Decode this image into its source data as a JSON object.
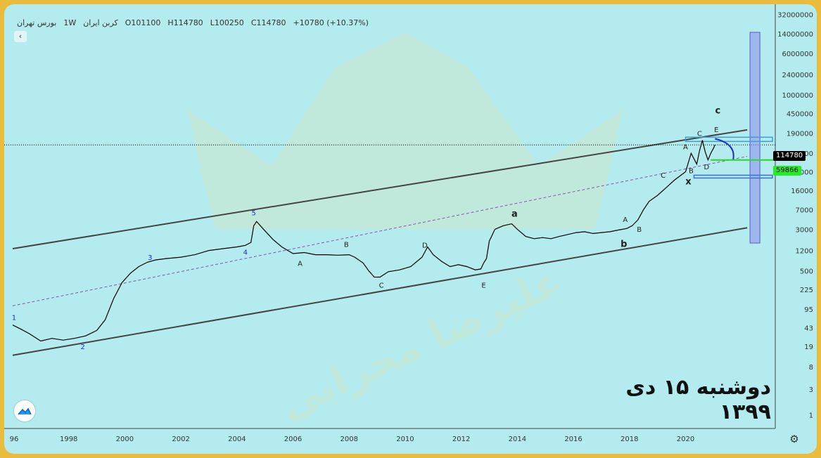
{
  "header": {
    "symbol": "کربن ایران",
    "timeframe": "1W",
    "exchange": "بورس تهران",
    "open": "O101100",
    "high": "H114780",
    "low": "L100250",
    "close": "C114780",
    "change": "+10780 (+10.37%)"
  },
  "caption": "دوشنبه ۱۵ دی ۱۳۹۹",
  "watermark_brand": "ARV",
  "watermark_name": "علیرضا محرابی",
  "price_tags": {
    "last": "114780",
    "level": "59866"
  },
  "colors": {
    "background": "#b3ebee",
    "frame": "#e9bc3e",
    "price_line": "#000000",
    "channel": "#444444",
    "wave_labels": "#1d2fc7",
    "level_line": "#22dd22",
    "zone_box": "#8c8cf0"
  },
  "chart_data": {
    "type": "line",
    "title": "",
    "scale": "log",
    "xlabel": "",
    "ylabel": "",
    "x_ticks": [
      "96",
      "1998",
      "2000",
      "2002",
      "2004",
      "2006",
      "2008",
      "2010",
      "2012",
      "2014",
      "2016",
      "2018",
      "2020"
    ],
    "y_ticks": [
      "1",
      "3",
      "8",
      "19",
      "43",
      "95",
      "225",
      "500",
      "1200",
      "3000",
      "7000",
      "16000",
      "36000",
      "80000",
      "190000",
      "450000",
      "1000000",
      "2400000",
      "6000000",
      "14000000",
      "32000000"
    ],
    "xlim": [
      1996.0,
      2023.2
    ],
    "ylim": [
      0.55,
      50000000
    ],
    "series": [
      {
        "x": [
          1996.0,
          1996.3,
          1996.6,
          1997.0,
          1997.4,
          1997.8,
          1998.2,
          1998.6,
          1999.0,
          1999.3,
          1999.6,
          1999.9,
          2000.2,
          2000.5,
          2000.8,
          2001.1,
          2001.5,
          2002.0,
          2002.5,
          2003.0,
          2003.5,
          2004.0,
          2004.3,
          2004.5,
          2004.6,
          2004.7,
          2005.0,
          2005.3,
          2005.6,
          2006.0,
          2006.4,
          2006.8,
          2007.2,
          2007.6,
          2008.0,
          2008.2,
          2008.5,
          2008.7,
          2008.9,
          2009.1,
          2009.4,
          2009.8,
          2010.2,
          2010.6,
          2010.8,
          2011.0,
          2011.3,
          2011.6,
          2011.9,
          2012.2,
          2012.5,
          2012.7,
          2012.8,
          2012.9,
          2013.0,
          2013.2,
          2013.5,
          2013.8,
          2014.0,
          2014.3,
          2014.6,
          2014.9,
          2015.2,
          2015.5,
          2015.8,
          2016.1,
          2016.4,
          2016.7,
          2017.0,
          2017.3,
          2017.6,
          2017.9,
          2018.1,
          2018.3,
          2018.5,
          2018.7,
          2019.0,
          2019.3,
          2019.6,
          2019.8,
          2020.0,
          2020.2,
          2020.4,
          2020.5,
          2020.6,
          2020.7,
          2020.8,
          2020.9,
          2021.0,
          2021.05
        ],
        "values": [
          48,
          40,
          33,
          24,
          27,
          25,
          27,
          30,
          38,
          60,
          150,
          300,
          450,
          600,
          720,
          800,
          850,
          900,
          1000,
          1200,
          1300,
          1400,
          1500,
          1700,
          3500,
          4200,
          2800,
          1900,
          1400,
          1050,
          1100,
          1000,
          1000,
          980,
          1000,
          900,
          700,
          500,
          380,
          380,
          480,
          520,
          600,
          900,
          1400,
          1000,
          750,
          600,
          650,
          600,
          520,
          540,
          700,
          850,
          1800,
          3000,
          3500,
          3800,
          3000,
          2200,
          2000,
          2100,
          2000,
          2200,
          2400,
          2600,
          2700,
          2500,
          2600,
          2700,
          2900,
          3100,
          3500,
          4500,
          7000,
          10000,
          13000,
          18000,
          25000,
          30000,
          36000,
          80000,
          50000,
          90000,
          140000,
          85000,
          60000,
          80000,
          100000,
          114780
        ]
      }
    ],
    "wave_labels": [
      {
        "text": "1",
        "x": 1996.05,
        "y": 60
      },
      {
        "text": "2",
        "x": 1998.5,
        "y": 17
      },
      {
        "text": "3",
        "x": 2000.9,
        "y": 800
      },
      {
        "text": "4",
        "x": 2004.3,
        "y": 1000
      },
      {
        "text": "5",
        "x": 2004.6,
        "y": 5500
      },
      {
        "text": "A",
        "x": 2006.25,
        "y": 620
      },
      {
        "text": "B",
        "x": 2007.9,
        "y": 1400
      },
      {
        "text": "C",
        "x": 2009.15,
        "y": 240
      },
      {
        "text": "D",
        "x": 2010.7,
        "y": 1350
      },
      {
        "text": "E",
        "x": 2012.8,
        "y": 240
      },
      {
        "text": "a",
        "x": 2013.9,
        "y": 5200
      },
      {
        "text": "b",
        "x": 2017.8,
        "y": 1400
      },
      {
        "text": "A",
        "x": 2017.85,
        "y": 4100
      },
      {
        "text": "B",
        "x": 2018.35,
        "y": 2700
      },
      {
        "text": "C",
        "x": 2019.2,
        "y": 28000
      },
      {
        "text": "A",
        "x": 2020.0,
        "y": 95000
      },
      {
        "text": "B",
        "x": 2020.2,
        "y": 34000
      },
      {
        "text": "C",
        "x": 2020.5,
        "y": 170000
      },
      {
        "text": "D",
        "x": 2020.75,
        "y": 40000
      },
      {
        "text": "E",
        "x": 2021.1,
        "y": 200000
      },
      {
        "text": "c",
        "x": 2021.15,
        "y": 450000
      },
      {
        "text": "x",
        "x": 2020.1,
        "y": 21000
      }
    ]
  }
}
